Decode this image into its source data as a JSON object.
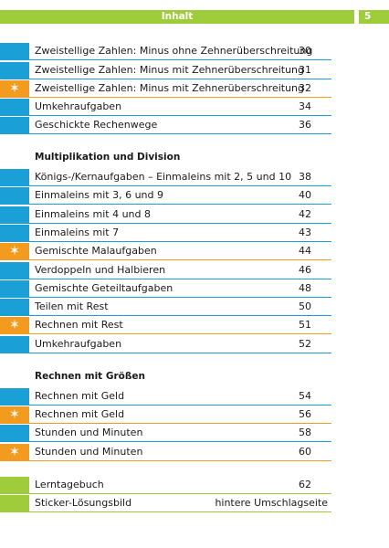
{
  "colors": {
    "header": "#9fcc3a",
    "blue": "#1a9fd6",
    "orange": "#f29b1f",
    "green": "#9fcc3a",
    "rule_blue": "#1a9fd6",
    "rule_orange": "#f29b1f",
    "rule_green": "#9fcc3a"
  },
  "header": {
    "title": "Inhalt",
    "page_number": "5"
  },
  "sections": [
    {
      "heading": "",
      "items": [
        {
          "label": "Zweistellige Zahlen: Minus ohne Zehnerüberschreitung",
          "page": "30",
          "marker": "blue",
          "icon": ""
        },
        {
          "label": "Zweistellige Zahlen: Minus mit Zehnerüberschreitung",
          "page": "31",
          "marker": "blue",
          "icon": ""
        },
        {
          "label": "Zweistellige Zahlen: Minus mit Zehnerüberschreitung",
          "page": "32",
          "marker": "orange",
          "icon": "star-icon"
        },
        {
          "label": "Umkehraufgaben",
          "page": "34",
          "marker": "blue",
          "icon": ""
        },
        {
          "label": "Geschickte Rechenwege",
          "page": "36",
          "marker": "blue",
          "icon": ""
        }
      ]
    },
    {
      "heading": "Multiplikation und Division",
      "items": [
        {
          "label": "Königs-/Kernaufgaben – Einmaleins mit 2, 5 und 10",
          "page": "38",
          "marker": "blue",
          "icon": ""
        },
        {
          "label": "Einmaleins mit 3, 6 und 9",
          "page": "40",
          "marker": "blue",
          "icon": ""
        },
        {
          "label": "Einmaleins mit 4 und 8",
          "page": "42",
          "marker": "blue",
          "icon": ""
        },
        {
          "label": "Einmaleins mit 7",
          "page": "43",
          "marker": "blue",
          "icon": ""
        },
        {
          "label": "Gemischte Malaufgaben",
          "page": "44",
          "marker": "orange",
          "icon": "star-icon"
        },
        {
          "label": "Verdoppeln und Halbieren",
          "page": "46",
          "marker": "blue",
          "icon": ""
        },
        {
          "label": "Gemischte Geteiltaufgaben",
          "page": "48",
          "marker": "blue",
          "icon": ""
        },
        {
          "label": "Teilen mit Rest",
          "page": "50",
          "marker": "blue",
          "icon": ""
        },
        {
          "label": "Rechnen mit Rest",
          "page": "51",
          "marker": "orange",
          "icon": "star-icon"
        },
        {
          "label": "Umkehraufgaben",
          "page": "52",
          "marker": "blue",
          "icon": ""
        }
      ]
    },
    {
      "heading": "Rechnen mit Größen",
      "items": [
        {
          "label": "Rechnen mit Geld",
          "page": "54",
          "marker": "blue",
          "icon": ""
        },
        {
          "label": "Rechnen mit Geld",
          "page": "56",
          "marker": "orange",
          "icon": "star-icon"
        },
        {
          "label": "Stunden und Minuten",
          "page": "58",
          "marker": "blue",
          "icon": ""
        },
        {
          "label": "Stunden und Minuten",
          "page": "60",
          "marker": "orange",
          "icon": "star-icon"
        }
      ]
    },
    {
      "heading": "",
      "items": [
        {
          "label": "Lerntagebuch",
          "page": "62",
          "marker": "green",
          "icon": ""
        },
        {
          "label": "Sticker-Lösungsbild",
          "page": "hintere Umschlagseite",
          "marker": "green",
          "icon": ""
        }
      ]
    }
  ]
}
